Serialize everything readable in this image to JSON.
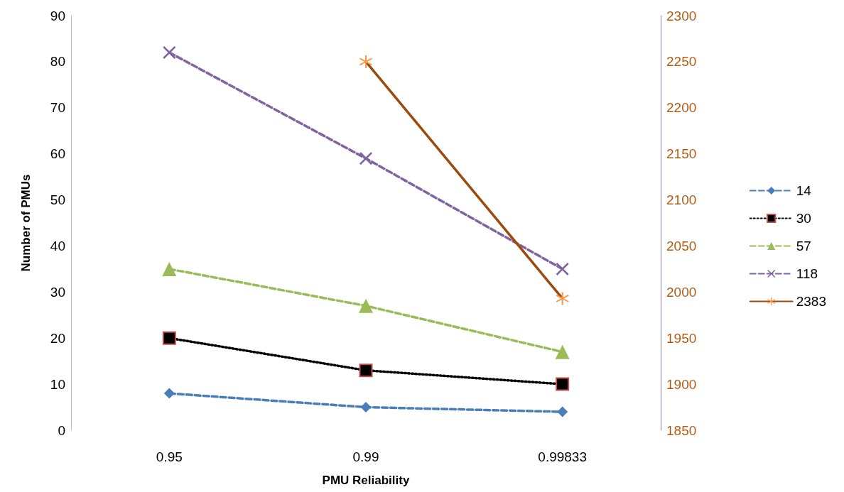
{
  "chart_data": {
    "type": "line",
    "xlabel": "PMU Reliability",
    "ylabel": "Number of PMUs",
    "categories": [
      "0.95",
      "0.99",
      "0.99833"
    ],
    "series": [
      {
        "name": "14",
        "color": "#4a7ebb",
        "values": [
          8,
          5,
          4
        ],
        "marker": "diamond",
        "line_style": "dashed"
      },
      {
        "name": "30",
        "color": "#000000",
        "values": [
          20,
          13,
          10
        ],
        "marker": "square",
        "line_style": "dotted"
      },
      {
        "name": "57",
        "color": "#9bbb59",
        "values": [
          35,
          27,
          17
        ],
        "marker": "triangle",
        "line_style": "dashed"
      },
      {
        "name": "118",
        "color": "#8064a2",
        "values": [
          82,
          59,
          35
        ],
        "marker": "cross",
        "line_style": "dashed"
      },
      {
        "name": "2383",
        "color": "#9c4a0e",
        "values": [
          null,
          2250,
          1993
        ],
        "marker": "star",
        "line_style": "solid",
        "axis": "y2"
      }
    ],
    "ylim": [
      0,
      90
    ],
    "yticks": [
      0,
      10,
      20,
      30,
      40,
      50,
      60,
      70,
      80,
      90
    ],
    "y2lim": [
      1850,
      2300
    ],
    "y2ticks": [
      1850,
      1900,
      1950,
      2000,
      2050,
      2100,
      2150,
      2200,
      2250,
      2300
    ],
    "grid": false,
    "legend": "right"
  }
}
